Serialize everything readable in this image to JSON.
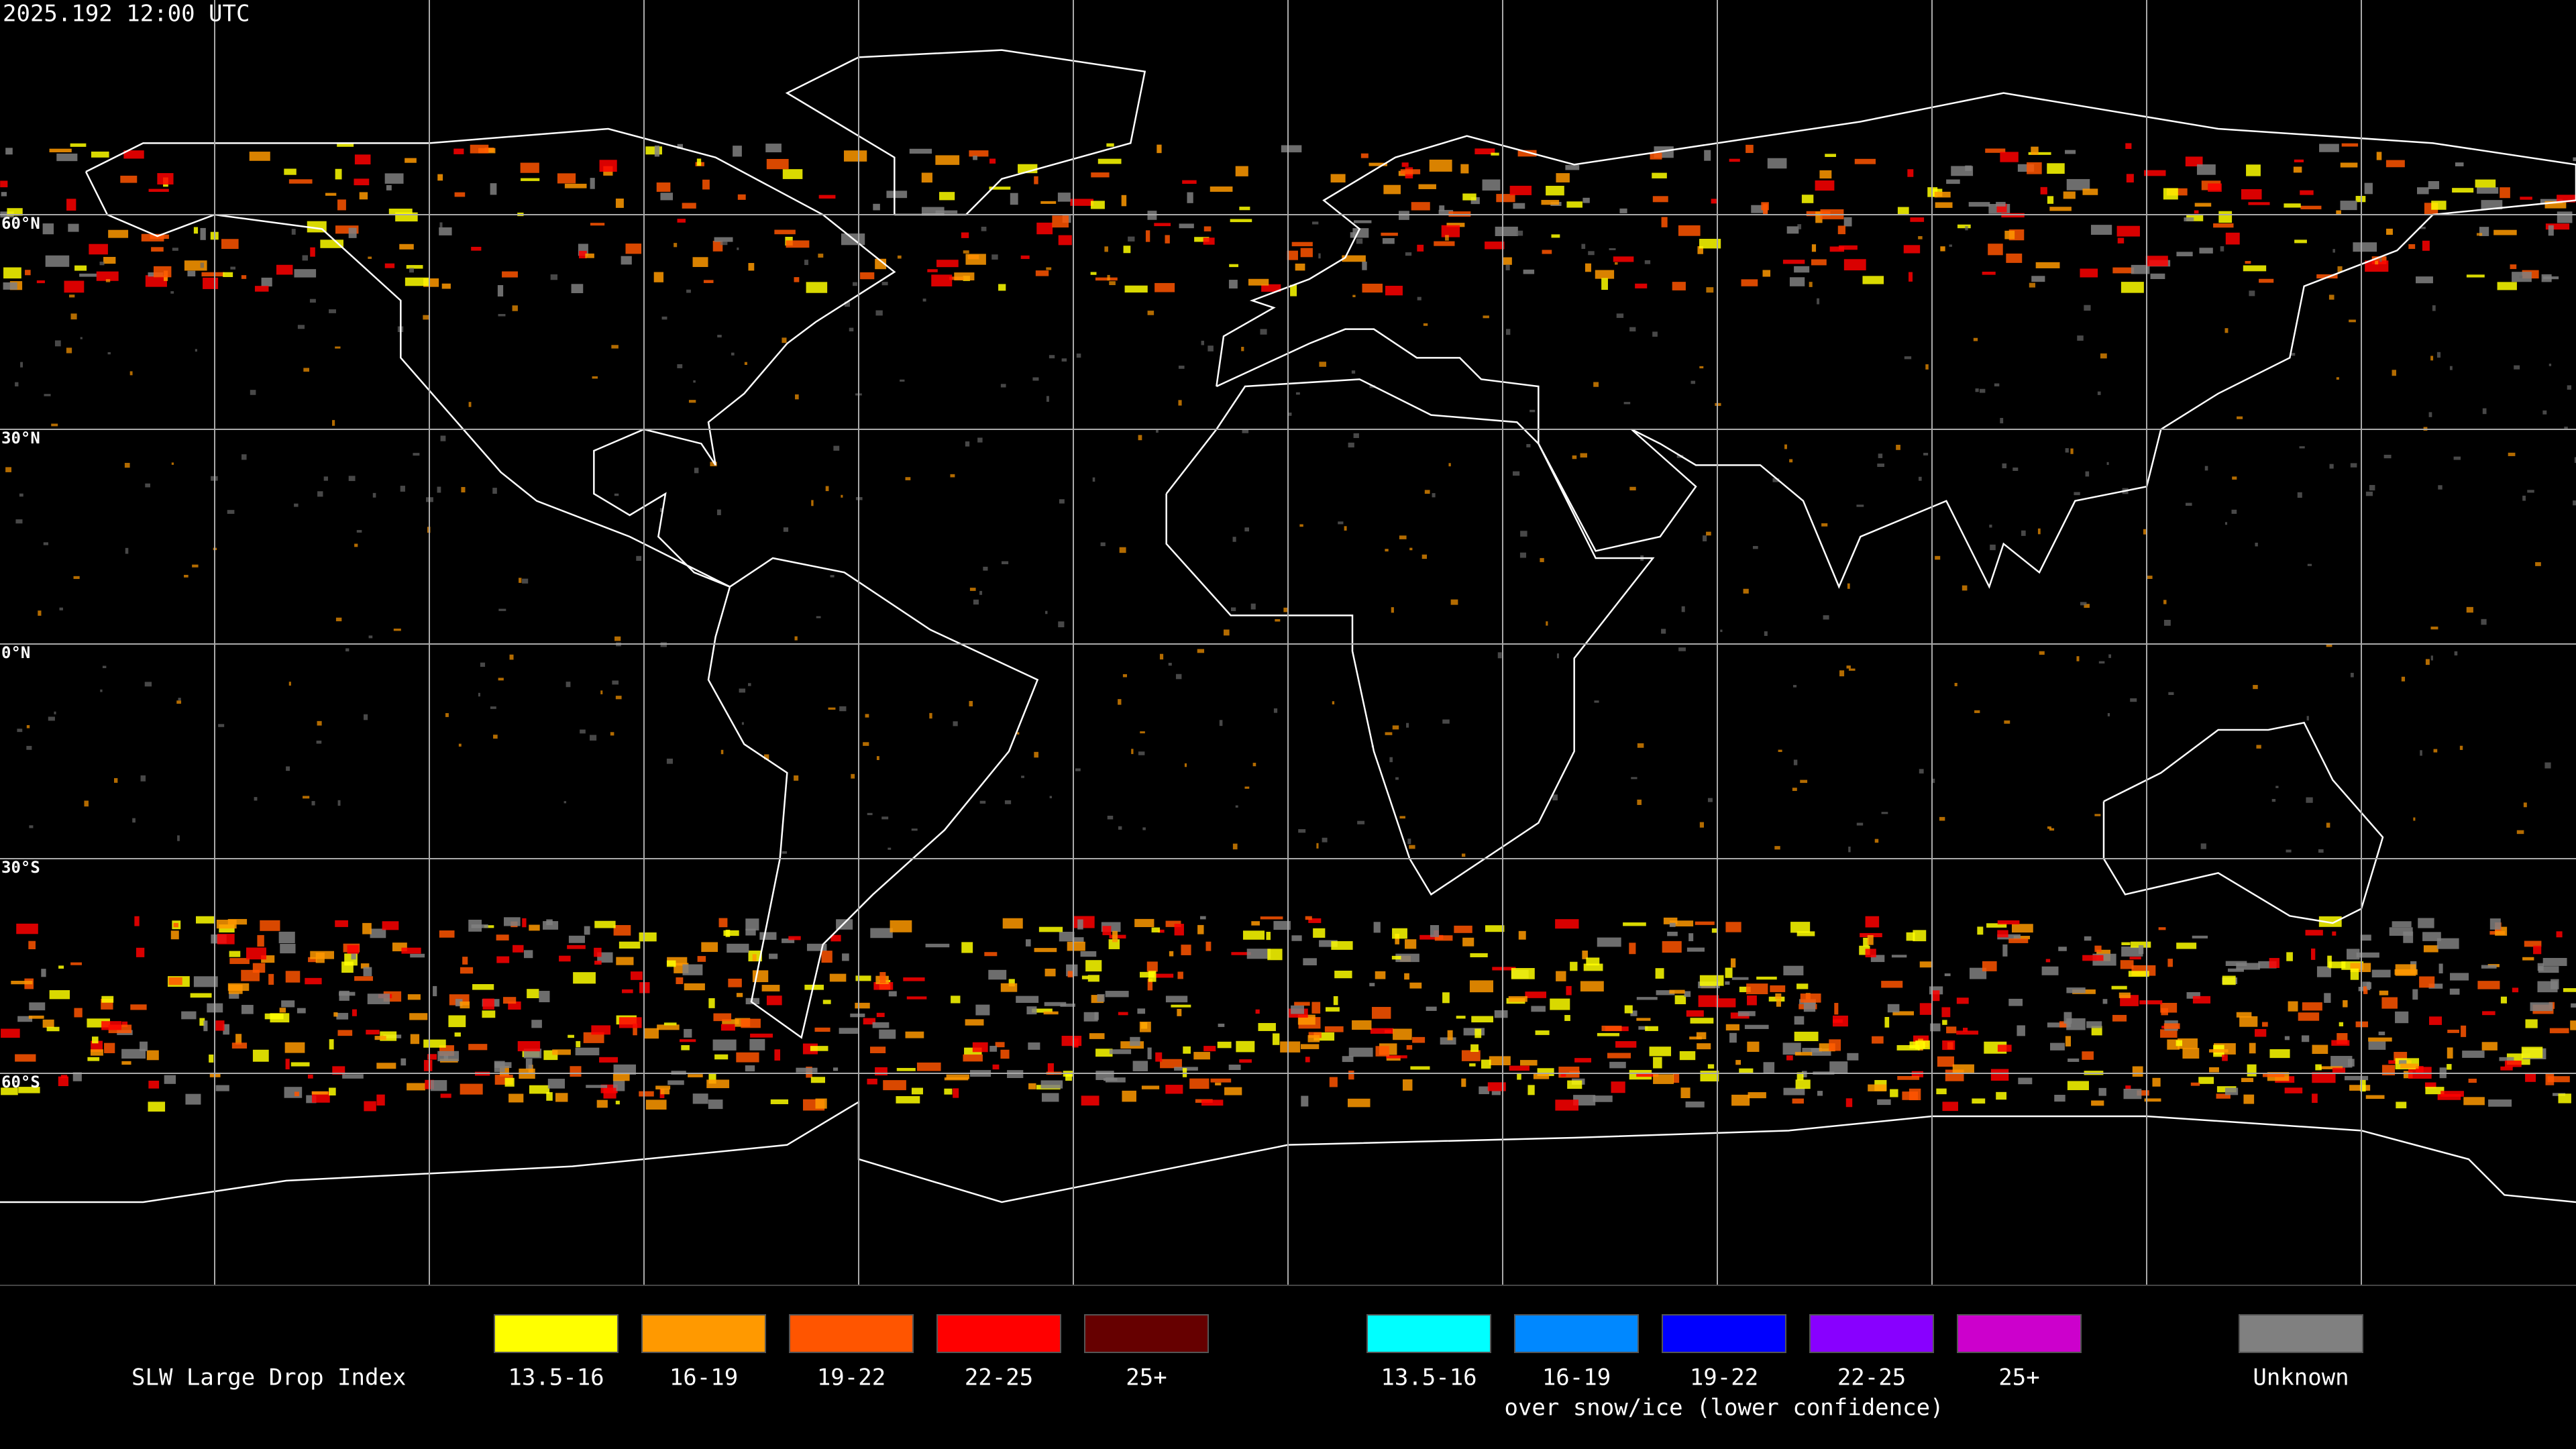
{
  "header": {
    "timestamp": "2025.192 12:00 UTC"
  },
  "map": {
    "latitude_labels": [
      "60°N",
      "30°N",
      "0°N",
      "30°S",
      "60°S"
    ]
  },
  "legend": {
    "title": "SLW Large Drop Index",
    "groups": [
      {
        "items": [
          {
            "label": "13.5-16",
            "color": "#ffff00"
          },
          {
            "label": "16-19",
            "color": "#ff9900"
          },
          {
            "label": "19-22",
            "color": "#ff5500"
          },
          {
            "label": "22-25",
            "color": "#ff0000"
          },
          {
            "label": "25+",
            "color": "#660000"
          }
        ]
      },
      {
        "caption": "over snow/ice (lower confidence)",
        "items": [
          {
            "label": "13.5-16",
            "color": "#00ffff"
          },
          {
            "label": "16-19",
            "color": "#0088ff"
          },
          {
            "label": "19-22",
            "color": "#0000ff"
          },
          {
            "label": "22-25",
            "color": "#8800ff"
          },
          {
            "label": "25+",
            "color": "#cc00cc"
          }
        ]
      },
      {
        "items": [
          {
            "label": "Unknown",
            "color": "#808080"
          }
        ]
      }
    ]
  }
}
